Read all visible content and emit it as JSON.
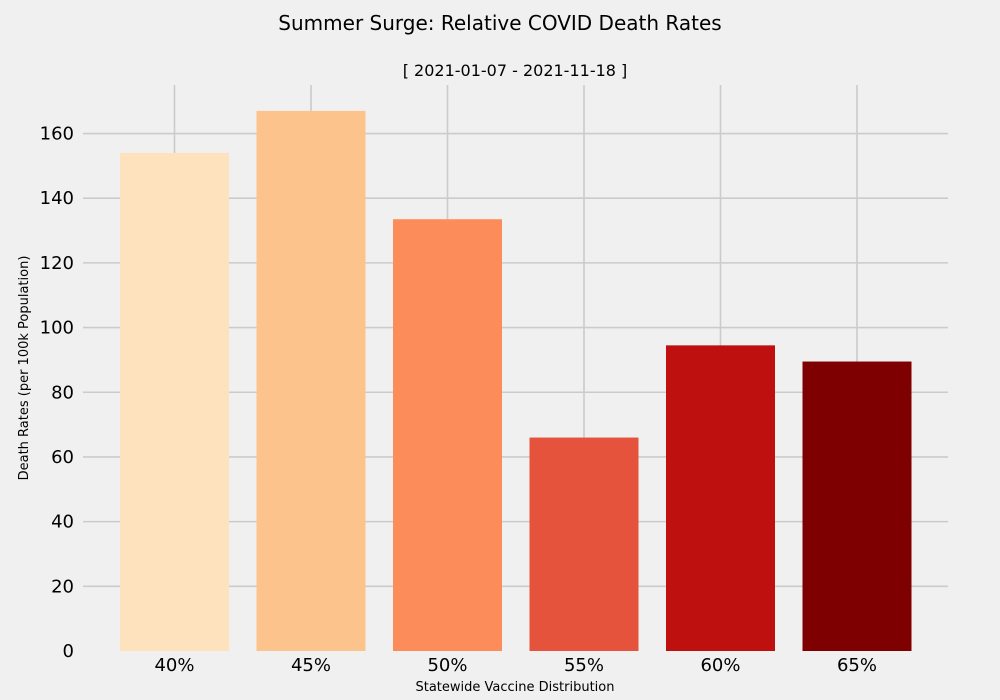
{
  "chart_data": {
    "type": "bar",
    "title": "Summer Surge: Relative COVID Death Rates",
    "subtitle": "[ 2021-01-07 - 2021-11-18 ]",
    "xlabel": "Statewide Vaccine Distribution",
    "ylabel": "Death Rates (per 100k Population)",
    "categories": [
      "40%",
      "45%",
      "50%",
      "55%",
      "60%",
      "65%"
    ],
    "values": [
      154,
      167,
      133.5,
      66,
      94.5,
      89.5
    ],
    "colors": [
      "#fee2be",
      "#fdc38d",
      "#fc8d5b",
      "#e6533c",
      "#be100e",
      "#7f0000"
    ],
    "ylim": [
      0,
      175
    ],
    "yticks": [
      0,
      20,
      40,
      60,
      80,
      100,
      120,
      140,
      160
    ],
    "grid": true,
    "background": "#f0f0f0",
    "grid_color": "#cbcbcb"
  }
}
